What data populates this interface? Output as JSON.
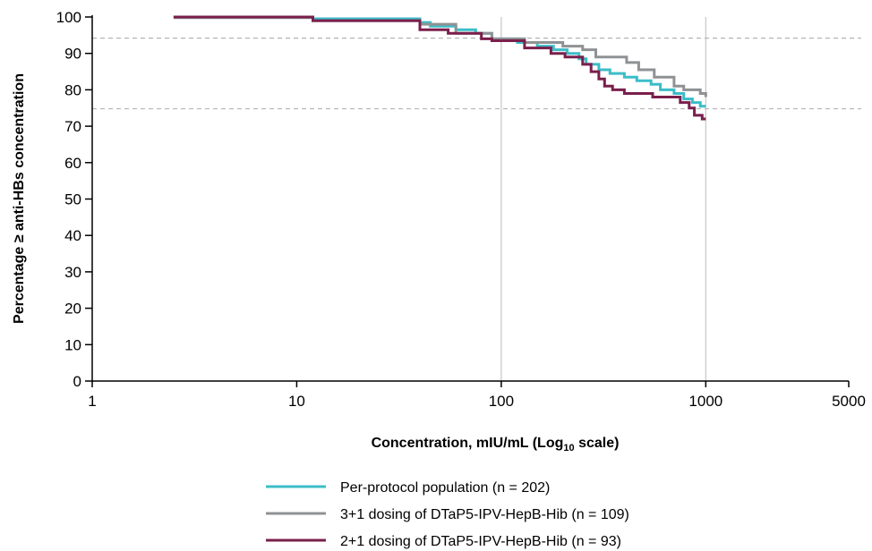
{
  "chart_data": {
    "type": "line",
    "step": true,
    "x_scale": "log",
    "xlim": [
      1,
      5000
    ],
    "ylim": [
      0,
      100
    ],
    "x_ticks": [
      {
        "value": 1,
        "label": "1"
      },
      {
        "value": 10,
        "label": "10"
      },
      {
        "value": 100,
        "label": "100"
      },
      {
        "value": 1000,
        "label": "1000"
      },
      {
        "value": 5000,
        "label": "5000"
      }
    ],
    "y_ticks": [
      {
        "value": 0,
        "label": "0"
      },
      {
        "value": 10,
        "label": "10"
      },
      {
        "value": 20,
        "label": "20"
      },
      {
        "value": 30,
        "label": "30"
      },
      {
        "value": 40,
        "label": "40"
      },
      {
        "value": 50,
        "label": "50"
      },
      {
        "value": 60,
        "label": "60"
      },
      {
        "value": 70,
        "label": "70"
      },
      {
        "value": 80,
        "label": "80"
      },
      {
        "value": 90,
        "label": "90"
      },
      {
        "value": 100,
        "label": "100"
      }
    ],
    "xlabel": "Concentration, mIU/mL (Log",
    "xlabel_subscript": "10",
    "xlabel_suffix": " scale)",
    "ylabel": "Percentage ≥ anti-HBs concentration",
    "vertical_reference_lines": [
      100,
      1000
    ],
    "horizontal_reference_lines": [
      94.2,
      74.8
    ],
    "legend_position": "bottom-center",
    "series": [
      {
        "name": "Per-protocol population (n = 202)",
        "color": "#3cbdc8",
        "points": [
          [
            2.5,
            100
          ],
          [
            12,
            100
          ],
          [
            12,
            99.5
          ],
          [
            40,
            99.5
          ],
          [
            40,
            98.5
          ],
          [
            45,
            98.5
          ],
          [
            45,
            97.5
          ],
          [
            60,
            97.5
          ],
          [
            60,
            96.5
          ],
          [
            75,
            96.5
          ],
          [
            75,
            95.5
          ],
          [
            90,
            95.5
          ],
          [
            90,
            94
          ],
          [
            120,
            94
          ],
          [
            120,
            93
          ],
          [
            150,
            93
          ],
          [
            150,
            92
          ],
          [
            180,
            92
          ],
          [
            180,
            91
          ],
          [
            210,
            91
          ],
          [
            210,
            90
          ],
          [
            240,
            90
          ],
          [
            240,
            88.5
          ],
          [
            260,
            88.5
          ],
          [
            260,
            87
          ],
          [
            300,
            87
          ],
          [
            300,
            85.5
          ],
          [
            340,
            85.5
          ],
          [
            340,
            84.5
          ],
          [
            400,
            84.5
          ],
          [
            400,
            83.5
          ],
          [
            460,
            83.5
          ],
          [
            460,
            82.5
          ],
          [
            540,
            82.5
          ],
          [
            540,
            81.5
          ],
          [
            600,
            81.5
          ],
          [
            600,
            80
          ],
          [
            700,
            80
          ],
          [
            700,
            79
          ],
          [
            780,
            79
          ],
          [
            780,
            77.5
          ],
          [
            860,
            77.5
          ],
          [
            860,
            76.5
          ],
          [
            940,
            76.5
          ],
          [
            940,
            75.5
          ],
          [
            1000,
            75.5
          ]
        ]
      },
      {
        "name": "3+1 dosing of DTaP5-IPV-HepB-Hib (n = 109)",
        "color": "#8f9294",
        "points": [
          [
            2.5,
            99.8
          ],
          [
            12,
            99.8
          ],
          [
            12,
            99
          ],
          [
            40,
            99
          ],
          [
            40,
            98
          ],
          [
            60,
            98
          ],
          [
            60,
            95.5
          ],
          [
            90,
            95.5
          ],
          [
            90,
            94
          ],
          [
            130,
            94
          ],
          [
            130,
            93
          ],
          [
            200,
            93
          ],
          [
            200,
            92
          ],
          [
            250,
            92
          ],
          [
            250,
            91
          ],
          [
            290,
            91
          ],
          [
            290,
            89
          ],
          [
            410,
            89
          ],
          [
            410,
            87.5
          ],
          [
            470,
            87.5
          ],
          [
            470,
            85.5
          ],
          [
            560,
            85.5
          ],
          [
            560,
            83.5
          ],
          [
            700,
            83.5
          ],
          [
            700,
            81
          ],
          [
            780,
            81
          ],
          [
            780,
            80
          ],
          [
            940,
            80
          ],
          [
            940,
            79
          ],
          [
            1000,
            79
          ],
          [
            1000,
            78
          ]
        ]
      },
      {
        "name": "2+1 dosing of DTaP5-IPV-HepB-Hib (n = 93)",
        "color": "#7a1f4c",
        "points": [
          [
            2.5,
            100
          ],
          [
            12,
            100
          ],
          [
            12,
            99
          ],
          [
            40,
            99
          ],
          [
            40,
            96.5
          ],
          [
            55,
            96.5
          ],
          [
            55,
            95.5
          ],
          [
            80,
            95.5
          ],
          [
            80,
            94
          ],
          [
            90,
            94
          ],
          [
            90,
            93.5
          ],
          [
            130,
            93.5
          ],
          [
            130,
            91.5
          ],
          [
            175,
            91.5
          ],
          [
            175,
            90
          ],
          [
            205,
            90
          ],
          [
            205,
            89
          ],
          [
            250,
            89
          ],
          [
            250,
            87
          ],
          [
            275,
            87
          ],
          [
            275,
            85
          ],
          [
            300,
            85
          ],
          [
            300,
            83
          ],
          [
            320,
            83
          ],
          [
            320,
            81
          ],
          [
            350,
            81
          ],
          [
            350,
            80
          ],
          [
            400,
            80
          ],
          [
            400,
            79
          ],
          [
            550,
            79
          ],
          [
            550,
            78
          ],
          [
            750,
            78
          ],
          [
            750,
            76.5
          ],
          [
            830,
            76.5
          ],
          [
            830,
            75
          ],
          [
            880,
            75
          ],
          [
            880,
            73
          ],
          [
            960,
            73
          ],
          [
            960,
            72
          ],
          [
            1000,
            72
          ]
        ]
      }
    ]
  }
}
